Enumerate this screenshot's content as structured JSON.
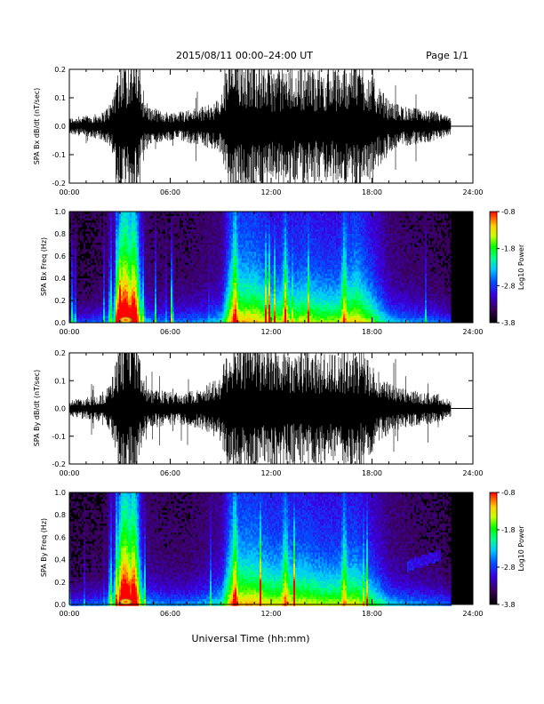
{
  "header": {
    "title": "2015/08/11   00:00–24:00  UT",
    "page": "Page 1/1"
  },
  "footer": {
    "xlabel": "Universal Time (hh:mm)"
  },
  "chart_data": [
    {
      "type": "line",
      "ylabel": "SPA Bx dB/dt (nT/sec)",
      "ylim": [
        -0.2,
        0.2
      ],
      "yticks": [
        "-0.2",
        "-0.1",
        "0.0",
        "0.1",
        "0.2"
      ],
      "xlim_hours": [
        0,
        24
      ],
      "xticks": [
        "00:00",
        "06:00",
        "12:00",
        "18:00",
        "24:00"
      ],
      "data_end_hour": 22.7,
      "trace_color": "#000000",
      "envelope": {
        "hour": [
          0,
          1,
          2,
          2.5,
          3,
          3.5,
          4,
          4.5,
          5,
          6,
          7,
          8,
          9,
          9.5,
          10,
          11,
          12,
          13,
          14,
          15,
          16,
          17,
          18,
          19,
          20,
          21,
          22,
          22.7
        ],
        "amplitude": [
          0.03,
          0.035,
          0.05,
          0.09,
          0.25,
          0.25,
          0.25,
          0.08,
          0.06,
          0.05,
          0.06,
          0.07,
          0.1,
          0.25,
          0.25,
          0.25,
          0.2,
          0.2,
          0.22,
          0.2,
          0.2,
          0.25,
          0.18,
          0.09,
          0.07,
          0.06,
          0.05,
          0.03
        ]
      }
    },
    {
      "type": "heatmap",
      "ylabel": "SPA Bx Freq (Hz)",
      "ylim": [
        0.0,
        1.0
      ],
      "yticks": [
        "0.0",
        "0.2",
        "0.4",
        "0.6",
        "0.8",
        "1.0"
      ],
      "xlim_hours": [
        0,
        24
      ],
      "xticks": [
        "00:00",
        "06:00",
        "12:00",
        "18:00",
        "24:00"
      ],
      "data_end_hour": 22.7,
      "colorbar": {
        "label": "Log10 Power",
        "range": [
          -3.8,
          -0.8
        ],
        "ticks": [
          "-0.8",
          "-1.8",
          "-2.8",
          "-3.8"
        ]
      },
      "background_color": "#000000"
    },
    {
      "type": "line",
      "ylabel": "SPA By dB/dt (nT/sec)",
      "ylim": [
        -0.2,
        0.2
      ],
      "yticks": [
        "-0.2",
        "-0.1",
        "0.0",
        "0.1",
        "0.2"
      ],
      "xlim_hours": [
        0,
        24
      ],
      "xticks": [
        "00:00",
        "06:00",
        "12:00",
        "18:00",
        "24:00"
      ],
      "data_end_hour": 22.7,
      "trace_color": "#000000",
      "envelope": {
        "hour": [
          0,
          1,
          2,
          2.5,
          3,
          3.5,
          4,
          4.5,
          5,
          6,
          7,
          8,
          9,
          9.5,
          10,
          11,
          12,
          13,
          14,
          15,
          16,
          17,
          18,
          19,
          20,
          21,
          22,
          22.7
        ],
        "amplitude": [
          0.03,
          0.04,
          0.05,
          0.1,
          0.25,
          0.25,
          0.25,
          0.08,
          0.07,
          0.06,
          0.06,
          0.08,
          0.12,
          0.25,
          0.25,
          0.25,
          0.22,
          0.22,
          0.22,
          0.2,
          0.2,
          0.22,
          0.16,
          0.09,
          0.07,
          0.06,
          0.05,
          0.03
        ]
      }
    },
    {
      "type": "heatmap",
      "ylabel": "SPA By Freq (Hz)",
      "ylim": [
        0.0,
        1.0
      ],
      "yticks": [
        "0.0",
        "0.2",
        "0.4",
        "0.6",
        "0.8",
        "1.0"
      ],
      "xlim_hours": [
        0,
        24
      ],
      "xticks": [
        "00:00",
        "06:00",
        "12:00",
        "18:00",
        "24:00"
      ],
      "data_end_hour": 22.7,
      "colorbar": {
        "label": "Log10 Power",
        "range": [
          -3.8,
          -0.8
        ],
        "ticks": [
          "-0.8",
          "-1.8",
          "-2.8",
          "-3.8"
        ]
      },
      "background_color": "#000000"
    }
  ]
}
